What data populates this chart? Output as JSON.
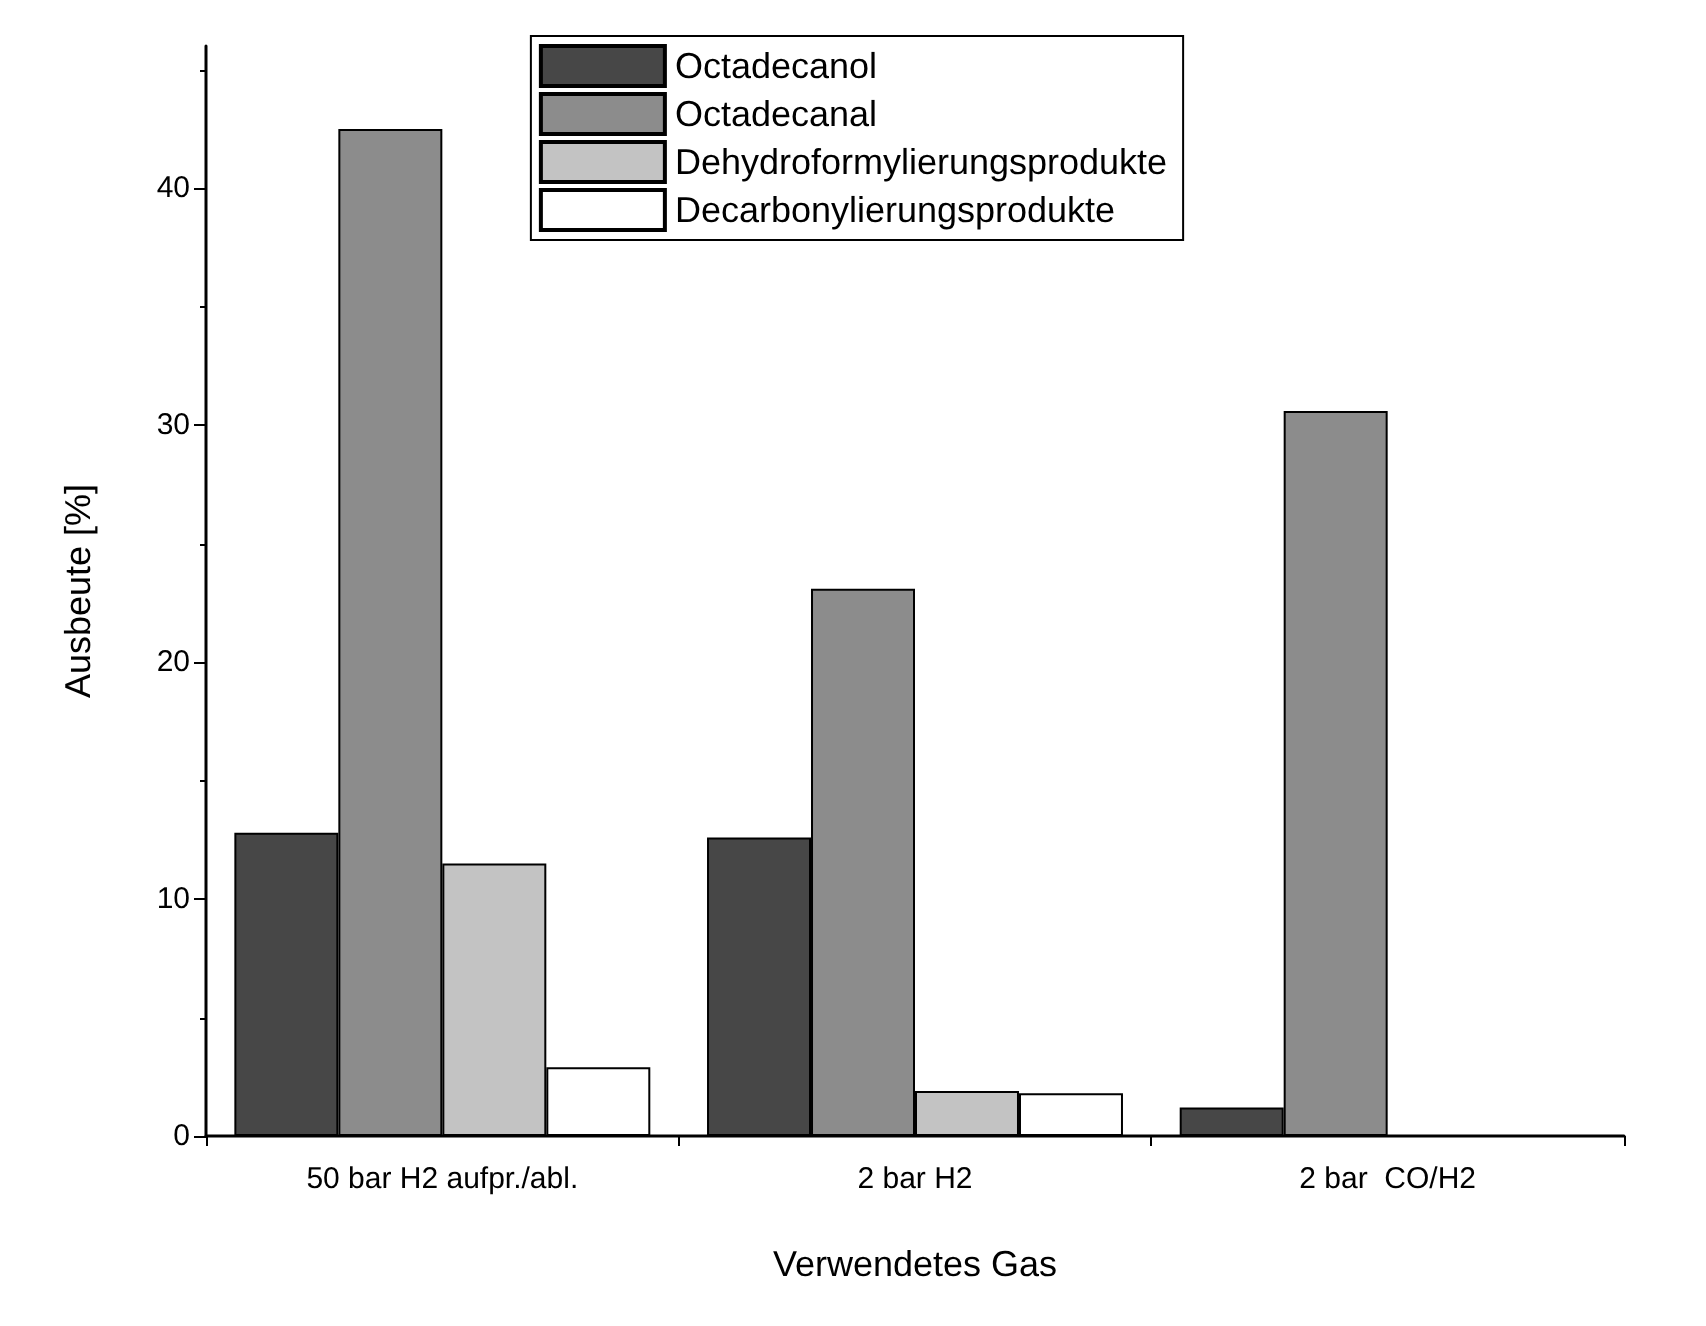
{
  "chart_data": {
    "type": "bar",
    "xlabel": "Verwendetes Gas",
    "ylabel": "Ausbeute [%]",
    "categories": [
      "50 bar H2 aufpr./abl.",
      "2 bar H2",
      "2 bar  CO/H2"
    ],
    "series": [
      {
        "name": "Octadecanol",
        "color": "#474747",
        "values": [
          12.8,
          12.6,
          1.2
        ]
      },
      {
        "name": "Octadecanal",
        "color": "#8c8c8c",
        "values": [
          42.5,
          23.1,
          30.6
        ]
      },
      {
        "name": "Dehydroformylierungsprodukte",
        "color": "#c3c3c3",
        "values": [
          11.5,
          1.9,
          null
        ]
      },
      {
        "name": "Decarbonylierungsprodukte",
        "color": "#ffffff",
        "values": [
          2.9,
          1.8,
          null
        ]
      }
    ],
    "ylim": [
      0,
      46
    ],
    "yticks": [
      0,
      10,
      20,
      30,
      40
    ],
    "grid": false,
    "legend": "top"
  }
}
